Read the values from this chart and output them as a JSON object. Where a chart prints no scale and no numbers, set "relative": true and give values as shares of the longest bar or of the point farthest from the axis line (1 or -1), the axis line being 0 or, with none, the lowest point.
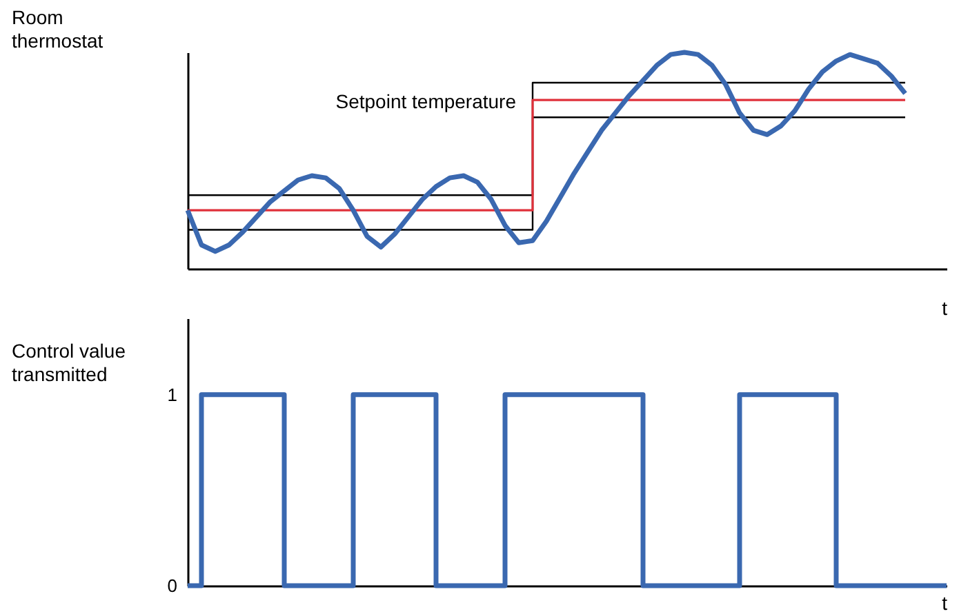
{
  "chart_data": [
    {
      "type": "line",
      "ylabel": "Room thermostat",
      "xlabel": "t",
      "relative": true,
      "categories": [
        null,
        null,
        null,
        null,
        null,
        null,
        null,
        null,
        null,
        null,
        null,
        null,
        null,
        null,
        null,
        null,
        null,
        null,
        null,
        null,
        null,
        null,
        null,
        null,
        null,
        null,
        null,
        null,
        null,
        null,
        null,
        null,
        null,
        null,
        null,
        null,
        null,
        null,
        null,
        null,
        null,
        null,
        null,
        null,
        null,
        null,
        null,
        null,
        null,
        null,
        null,
        null,
        null,
        null,
        null,
        null
      ],
      "series": [
        {
          "type": "step",
          "color": "#000000",
          "values": [
            0.34,
            0.34,
            0.34,
            0.34,
            0.34,
            0.34,
            0.34,
            0.34,
            0.34,
            0.34,
            0.34,
            0.34,
            0.34,
            0.34,
            0.34,
            0.34,
            0.34,
            0.34,
            0.34,
            0.34,
            0.34,
            0.34,
            0.34,
            0.34,
            0.34,
            0.86,
            0.86,
            0.86,
            0.86,
            0.86,
            0.86,
            0.86,
            0.86,
            0.86,
            0.86,
            0.86,
            0.86,
            0.86,
            0.86,
            0.86,
            0.86,
            0.86,
            0.86,
            0.86,
            0.86,
            0.86,
            0.86,
            0.86,
            0.86,
            0.86,
            0.86,
            0.86,
            0.86,
            null,
            null,
            null
          ]
        },
        {
          "type": "step",
          "color": "#000000",
          "values": [
            0.18,
            0.18,
            0.18,
            0.18,
            0.18,
            0.18,
            0.18,
            0.18,
            0.18,
            0.18,
            0.18,
            0.18,
            0.18,
            0.18,
            0.18,
            0.18,
            0.18,
            0.18,
            0.18,
            0.18,
            0.18,
            0.18,
            0.18,
            0.18,
            0.18,
            0.7,
            0.7,
            0.7,
            0.7,
            0.7,
            0.7,
            0.7,
            0.7,
            0.7,
            0.7,
            0.7,
            0.7,
            0.7,
            0.7,
            0.7,
            0.7,
            0.7,
            0.7,
            0.7,
            0.7,
            0.7,
            0.7,
            0.7,
            0.7,
            0.7,
            0.7,
            0.7,
            0.7,
            null,
            null,
            null
          ]
        },
        {
          "type": "step",
          "name": "Setpoint temperature",
          "color": "#e0303a",
          "values": [
            0.27,
            0.27,
            0.27,
            0.27,
            0.27,
            0.27,
            0.27,
            0.27,
            0.27,
            0.27,
            0.27,
            0.27,
            0.27,
            0.27,
            0.27,
            0.27,
            0.27,
            0.27,
            0.27,
            0.27,
            0.27,
            0.27,
            0.27,
            0.27,
            0.27,
            0.78,
            0.78,
            0.78,
            0.78,
            0.78,
            0.78,
            0.78,
            0.78,
            0.78,
            0.78,
            0.78,
            0.78,
            0.78,
            0.78,
            0.78,
            0.78,
            0.78,
            0.78,
            0.78,
            0.78,
            0.78,
            0.78,
            0.78,
            0.78,
            0.78,
            0.78,
            0.78,
            0.78,
            null,
            null,
            null
          ]
        },
        {
          "color": "#3a68b0",
          "values": [
            0.27,
            0.11,
            0.08,
            0.11,
            0.17,
            0.24,
            0.31,
            0.36,
            0.41,
            0.43,
            0.42,
            0.37,
            0.27,
            0.15,
            0.1,
            0.16,
            0.24,
            0.32,
            0.38,
            0.42,
            0.43,
            0.4,
            0.32,
            0.2,
            0.12,
            0.13,
            0.22,
            0.33,
            0.44,
            0.54,
            0.64,
            0.72,
            0.8,
            0.87,
            0.94,
            0.99,
            1,
            0.99,
            0.94,
            0.85,
            0.72,
            0.64,
            0.62,
            0.66,
            0.73,
            0.83,
            0.91,
            0.96,
            0.99,
            0.97,
            0.95,
            0.89,
            0.81,
            null,
            null,
            null
          ]
        }
      ]
    },
    {
      "type": "step",
      "ylabel": "Control value transmitted",
      "xlabel": "t",
      "tick_labels": "y",
      "ylim": [
        0,
        1.4
      ],
      "yticks": [
        0,
        1
      ],
      "categories": [
        null,
        null,
        null,
        null,
        null,
        null,
        null,
        null,
        null,
        null,
        null,
        null,
        null,
        null,
        null,
        null,
        null,
        null,
        null,
        null,
        null,
        null,
        null,
        null,
        null,
        null,
        null,
        null,
        null,
        null,
        null,
        null,
        null,
        null,
        null,
        null,
        null,
        null,
        null,
        null,
        null,
        null,
        null,
        null,
        null,
        null,
        null,
        null,
        null,
        null,
        null,
        null,
        null,
        null,
        null,
        null
      ],
      "series": [
        {
          "color": "#3a68b0",
          "values": [
            0,
            1,
            1,
            1,
            1,
            1,
            1,
            0,
            0,
            0,
            0,
            0,
            1,
            1,
            1,
            1,
            1,
            1,
            0,
            0,
            0,
            0,
            0,
            1,
            1,
            1,
            1,
            1,
            1,
            1,
            1,
            1,
            1,
            0,
            0,
            0,
            0,
            0,
            0,
            0,
            1,
            1,
            1,
            1,
            1,
            1,
            1,
            0,
            0,
            0,
            0,
            0,
            0,
            0,
            0,
            0
          ]
        }
      ]
    }
  ]
}
